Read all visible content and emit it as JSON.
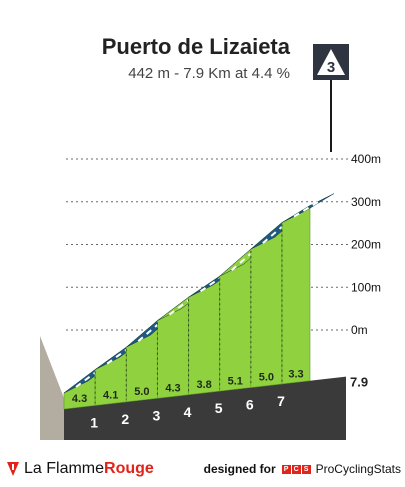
{
  "header": {
    "climb_name": "Puerto de Lizaieta",
    "summary": "442 m - 7.9 Km at 4.4 %",
    "category": "3"
  },
  "colors": {
    "gradient_low": "#8fd13f",
    "gradient_mid": "#1e5a82",
    "base": "#3a3a3a",
    "start_wall": "#b3aca1",
    "category_badge": "#2e3440"
  },
  "chart_data": {
    "type": "area",
    "title": "Puerto de Lizaieta",
    "subtitle": "442 m - 7.9 Km at 4.4 %",
    "xlabel": "",
    "ylabel": "",
    "x_unit": "km",
    "xlim": [
      0,
      7.9
    ],
    "ylim": [
      0,
      442
    ],
    "yticks": [
      {
        "value": 0,
        "label": "0m"
      },
      {
        "value": 100,
        "label": "100m"
      },
      {
        "value": 200,
        "label": "200m"
      },
      {
        "value": 300,
        "label": "300m"
      },
      {
        "value": 400,
        "label": "400m"
      }
    ],
    "km_markers": [
      "1",
      "2",
      "3",
      "4",
      "5",
      "6",
      "7"
    ],
    "total_distance_label": "7.9",
    "segments": [
      {
        "from_km": 0,
        "to_km": 1,
        "gradient": "4.3"
      },
      {
        "from_km": 1,
        "to_km": 2,
        "gradient": "4.1"
      },
      {
        "from_km": 2,
        "to_km": 3,
        "gradient": "5.0"
      },
      {
        "from_km": 3,
        "to_km": 4,
        "gradient": "4.3"
      },
      {
        "from_km": 4,
        "to_km": 5,
        "gradient": "3.8"
      },
      {
        "from_km": 5,
        "to_km": 6,
        "gradient": "5.1"
      },
      {
        "from_km": 6,
        "to_km": 7,
        "gradient": "5.0"
      },
      {
        "from_km": 7,
        "to_km": 7.9,
        "gradient": "3.3"
      }
    ],
    "elevation_gain": [
      {
        "km": 0,
        "m": 0
      },
      {
        "km": 1,
        "m": 43
      },
      {
        "km": 2,
        "m": 84
      },
      {
        "km": 3,
        "m": 134
      },
      {
        "km": 4,
        "m": 177
      },
      {
        "km": 5,
        "m": 215
      },
      {
        "km": 6,
        "m": 266
      },
      {
        "km": 7,
        "m": 316
      },
      {
        "km": 7.9,
        "m": 346
      }
    ],
    "grid": true
  },
  "footer": {
    "brand_plain": "La Flamme",
    "brand_accent": "Rouge",
    "designed_for": "designed for",
    "pcs_letters": [
      "P",
      "C",
      "S"
    ],
    "partner": "ProCyclingStats"
  }
}
